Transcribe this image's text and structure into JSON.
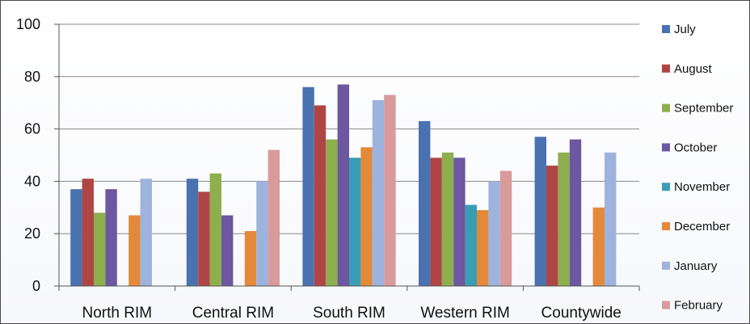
{
  "chart_data": {
    "type": "bar",
    "categories": [
      "North RIM",
      "Central RIM",
      "South RIM",
      "Western RIM",
      "Countywide"
    ],
    "series": [
      {
        "name": "July",
        "color": "#4a72b0",
        "values": [
          37,
          41,
          76,
          63,
          57
        ]
      },
      {
        "name": "August",
        "color": "#b04545",
        "values": [
          41,
          36,
          69,
          49,
          46
        ]
      },
      {
        "name": "September",
        "color": "#8daf4d",
        "values": [
          28,
          43,
          56,
          51,
          51
        ]
      },
      {
        "name": "October",
        "color": "#6c57a0",
        "values": [
          37,
          27,
          77,
          49,
          56
        ]
      },
      {
        "name": "November",
        "color": "#3a9db6",
        "values": [
          null,
          null,
          49,
          31,
          null
        ]
      },
      {
        "name": "December",
        "color": "#e28a3a",
        "values": [
          27,
          21,
          53,
          29,
          30
        ]
      },
      {
        "name": "January",
        "color": "#9db3dd",
        "values": [
          41,
          40,
          71,
          40,
          51
        ]
      },
      {
        "name": "February",
        "color": "#d99a9c",
        "values": [
          null,
          52,
          73,
          44,
          null
        ]
      }
    ],
    "ylim": [
      0,
      100
    ],
    "yticks": [
      0,
      20,
      40,
      60,
      80,
      100
    ],
    "grid": true,
    "legend": "right",
    "title": "",
    "xlabel": "",
    "ylabel": ""
  }
}
